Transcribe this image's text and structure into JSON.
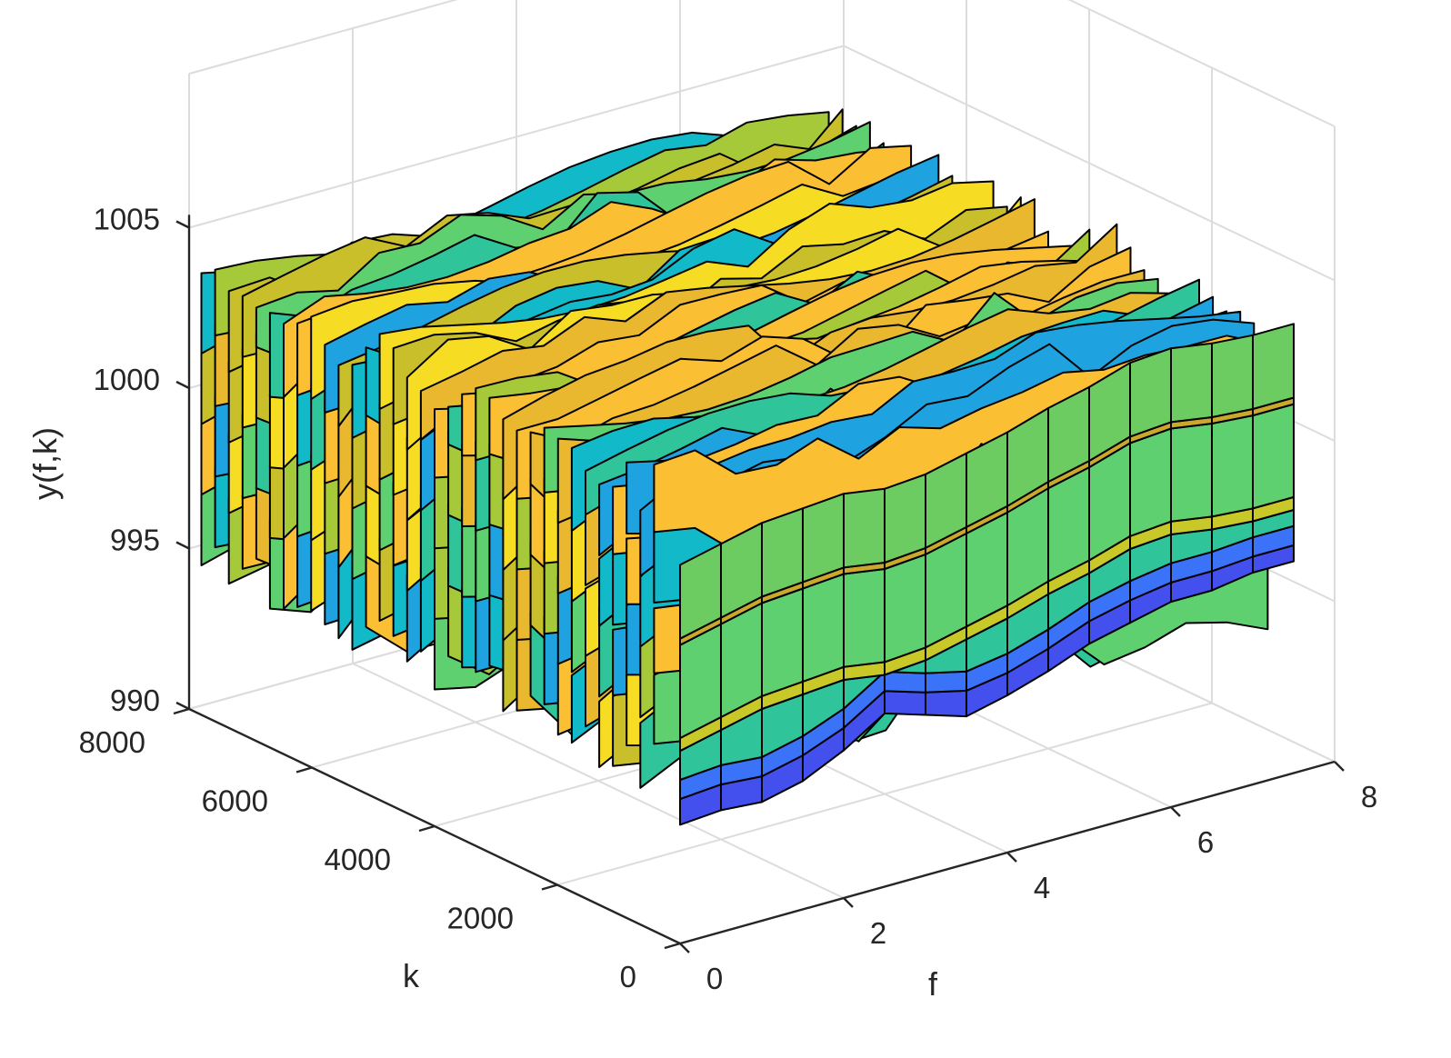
{
  "chart_data": {
    "type": "waterfall3d",
    "title": "",
    "xlabel": "f",
    "ylabel": "k",
    "zlabel": "y(f,k)",
    "x_ticks": [
      "0",
      "2",
      "4",
      "6",
      "8"
    ],
    "x_tick_values": [
      0,
      2,
      4,
      6,
      8
    ],
    "y_ticks": [
      "0",
      "2000",
      "4000",
      "6000",
      "8000"
    ],
    "y_tick_values": [
      0,
      2000,
      4000,
      6000,
      8000
    ],
    "z_ticks": [
      "990",
      "995",
      "1000",
      "1005"
    ],
    "z_tick_values": [
      990,
      995,
      1000,
      1005
    ],
    "xlim": [
      0,
      8
    ],
    "ylim": [
      0,
      8000
    ],
    "zlim": [
      990,
      1005
    ],
    "grid": true,
    "colormap": "parula",
    "f_samples": [
      0,
      0.5,
      1,
      1.5,
      2,
      2.5,
      3,
      3.5,
      4,
      4.5,
      5,
      5.5,
      6,
      6.5,
      7,
      7.5
    ],
    "front_profile_k0": {
      "bands_bottom_to_top": [
        {
          "name": "blue-base",
          "color": "#4450ee",
          "z_low": [
            993.7,
            993.8,
            993.7,
            994.0,
            994.6,
            995.4,
            995.0,
            994.6,
            994.9,
            995.3,
            995.8,
            996.1,
            996.4,
            996.4,
            996.6,
            996.6
          ],
          "z_high": [
            994.5,
            994.6,
            994.5,
            994.8,
            995.3,
            996.1,
            995.7,
            995.4,
            995.6,
            996.0,
            996.5,
            996.8,
            997.0,
            997.0,
            997.1,
            997.1
          ]
        },
        {
          "name": "teal-body",
          "color": "#2fc49a",
          "z_high": [
            1001.2,
            1001.5,
            1001.8,
            1001.9,
            1002.0,
            1001.8,
            1001.9,
            1002.2,
            1002.5,
            1002.9,
            1003.2,
            1003.6,
            1003.7,
            1003.5,
            1003.4,
            1003.4
          ]
        },
        {
          "name": "yellow-stripe",
          "color": "#c8c828",
          "thickness": 0.25
        },
        {
          "name": "green-upper",
          "color": "#5fd070",
          "z_high": [
            1005.8,
            1006.4,
            1006.9,
            1007.3,
            1007.3,
            1006.8,
            1007.2,
            1007.6,
            1008.0,
            1008.4,
            1008.6,
            1009.0,
            1009.6,
            1010.2,
            1010.1,
            1009.6
          ]
        }
      ]
    },
    "note": "Stack of vertical ribbons along k, each ribbon a profile in f; values range roughly 993 to 1005"
  }
}
